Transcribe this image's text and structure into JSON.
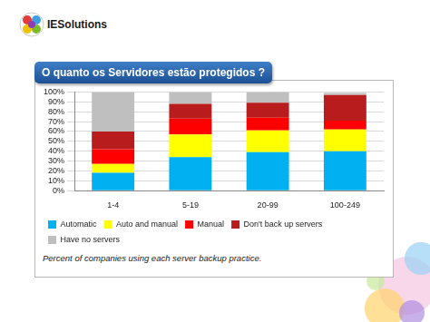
{
  "header": {
    "logo": "IESolutions",
    "title": "O quanto os Servidores estão protegidos ?"
  },
  "chart_data": {
    "type": "bar",
    "stacked": true,
    "grid": true,
    "legend": "bottom",
    "caption": "Percent of companies using each server backup practice.",
    "categories": [
      "1-4",
      "5-19",
      "20-99",
      "100-249"
    ],
    "series": [
      {
        "name": "Automatic",
        "color": "#00b0f0",
        "values": [
          18,
          34,
          39,
          40
        ]
      },
      {
        "name": "Auto and manual",
        "color": "#ffff00",
        "values": [
          9,
          23,
          22,
          22
        ]
      },
      {
        "name": "Manual",
        "color": "#ff0000",
        "values": [
          15,
          16,
          13,
          9
        ]
      },
      {
        "name": "Don't back up servers",
        "color": "#b81c1c",
        "values": [
          18,
          15,
          15,
          26
        ]
      },
      {
        "name": "Have no servers",
        "color": "#bfbfbf",
        "values": [
          40,
          12,
          11,
          2
        ]
      }
    ],
    "ylim": [
      0,
      100
    ],
    "yticks": [
      {
        "value": 0,
        "label": "0%"
      },
      {
        "value": 10,
        "label": "10%"
      },
      {
        "value": 20,
        "label": "20%"
      },
      {
        "value": 30,
        "label": "30%"
      },
      {
        "value": 40,
        "label": "40%"
      },
      {
        "value": 50,
        "label": "50%"
      },
      {
        "value": 60,
        "label": "60%"
      },
      {
        "value": 70,
        "label": "70%"
      },
      {
        "value": 80,
        "label": "80%"
      },
      {
        "value": 90,
        "label": "90%"
      },
      {
        "value": 100,
        "label": "100%"
      }
    ]
  }
}
